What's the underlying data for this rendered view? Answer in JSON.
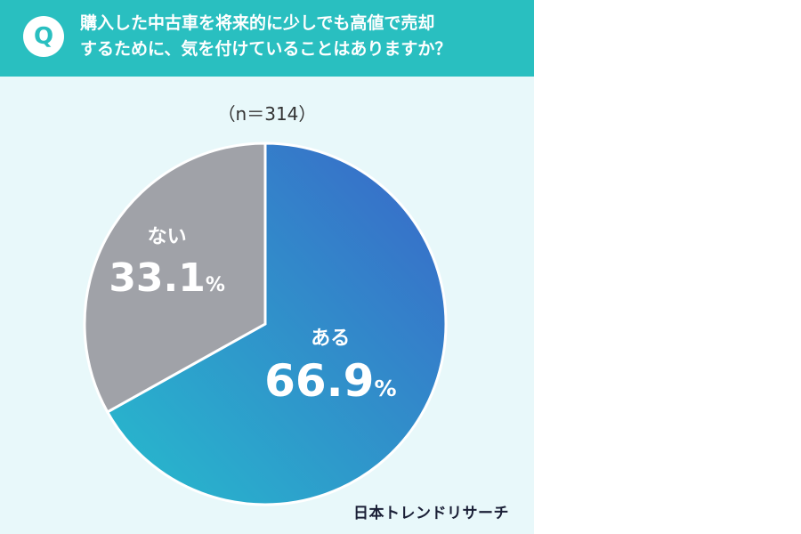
{
  "question": {
    "badge": "Q",
    "line1": "購入した中古車を将来的に少しでも高値で売却",
    "line2": "するために、気を付けていることはありますか？"
  },
  "sample_size": "（n＝314）",
  "brand": "日本トレンドリサーチ",
  "colors": {
    "header": "#29bfc0",
    "background": "#e8f8fa",
    "yes_gradient_start": "#3a66c8",
    "yes_gradient_end": "#26bccd",
    "no": "#a0a2a8"
  },
  "chart_data": {
    "type": "pie",
    "categories": [
      "ある",
      "ない"
    ],
    "values": [
      66.9,
      33.1
    ],
    "value_labels": [
      "66.9",
      "33.1"
    ],
    "unit": "%"
  }
}
